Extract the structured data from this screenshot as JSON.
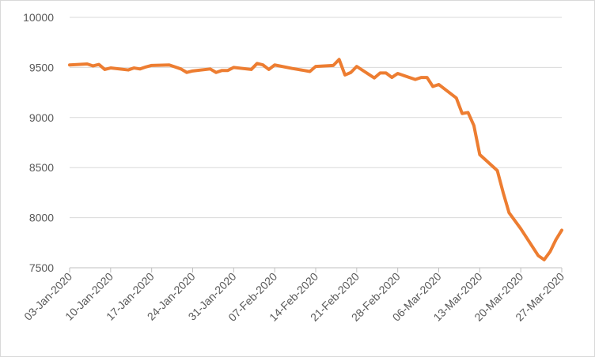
{
  "chart_data": {
    "type": "line",
    "x": [
      "03-Jan-2020",
      "06-Jan-2020",
      "07-Jan-2020",
      "08-Jan-2020",
      "09-Jan-2020",
      "10-Jan-2020",
      "13-Jan-2020",
      "14-Jan-2020",
      "15-Jan-2020",
      "16-Jan-2020",
      "17-Jan-2020",
      "20-Jan-2020",
      "21-Jan-2020",
      "22-Jan-2020",
      "23-Jan-2020",
      "24-Jan-2020",
      "27-Jan-2020",
      "28-Jan-2020",
      "29-Jan-2020",
      "30-Jan-2020",
      "31-Jan-2020",
      "03-Feb-2020",
      "04-Feb-2020",
      "05-Feb-2020",
      "06-Feb-2020",
      "07-Feb-2020",
      "10-Feb-2020",
      "11-Feb-2020",
      "12-Feb-2020",
      "13-Feb-2020",
      "14-Feb-2020",
      "17-Feb-2020",
      "18-Feb-2020",
      "19-Feb-2020",
      "20-Feb-2020",
      "21-Feb-2020",
      "24-Feb-2020",
      "25-Feb-2020",
      "26-Feb-2020",
      "27-Feb-2020",
      "28-Feb-2020",
      "02-Mar-2020",
      "03-Mar-2020",
      "04-Mar-2020",
      "05-Mar-2020",
      "06-Mar-2020",
      "09-Mar-2020",
      "10-Mar-2020",
      "11-Mar-2020",
      "12-Mar-2020",
      "13-Mar-2020",
      "16-Mar-2020",
      "17-Mar-2020",
      "18-Mar-2020",
      "19-Mar-2020",
      "20-Mar-2020",
      "23-Mar-2020",
      "24-Mar-2020",
      "25-Mar-2020",
      "26-Mar-2020",
      "27-Mar-2020"
    ],
    "series": [
      {
        "color": "#ed7d31",
        "values": [
          9525,
          9535,
          9515,
          9530,
          9480,
          9495,
          9475,
          9495,
          9485,
          9505,
          9520,
          9525,
          9505,
          9485,
          9450,
          9465,
          9485,
          9450,
          9470,
          9470,
          9500,
          9480,
          9540,
          9525,
          9480,
          9525,
          9490,
          9480,
          9470,
          9460,
          9510,
          9520,
          9580,
          9425,
          9450,
          9510,
          9395,
          9445,
          9445,
          9400,
          9440,
          9380,
          9400,
          9400,
          9310,
          9330,
          9195,
          9040,
          9050,
          8920,
          8630,
          8470,
          8250,
          8050,
          7970,
          7890,
          7620,
          7580,
          7660,
          7780,
          7875
        ]
      }
    ],
    "xlim": [
      "03-Jan-2020",
      "27-Mar-2020"
    ],
    "xticks": [
      "03-Jan-2020",
      "10-Jan-2020",
      "17-Jan-2020",
      "24-Jan-2020",
      "31-Jan-2020",
      "07-Feb-2020",
      "14-Feb-2020",
      "21-Feb-2020",
      "28-Feb-2020",
      "06-Mar-2020",
      "13-Mar-2020",
      "20-Mar-2020",
      "27-Mar-2020"
    ],
    "ylim": [
      7500,
      10000
    ],
    "yticks": [
      7500,
      8000,
      8500,
      9000,
      9500,
      10000
    ],
    "grid": true
  }
}
